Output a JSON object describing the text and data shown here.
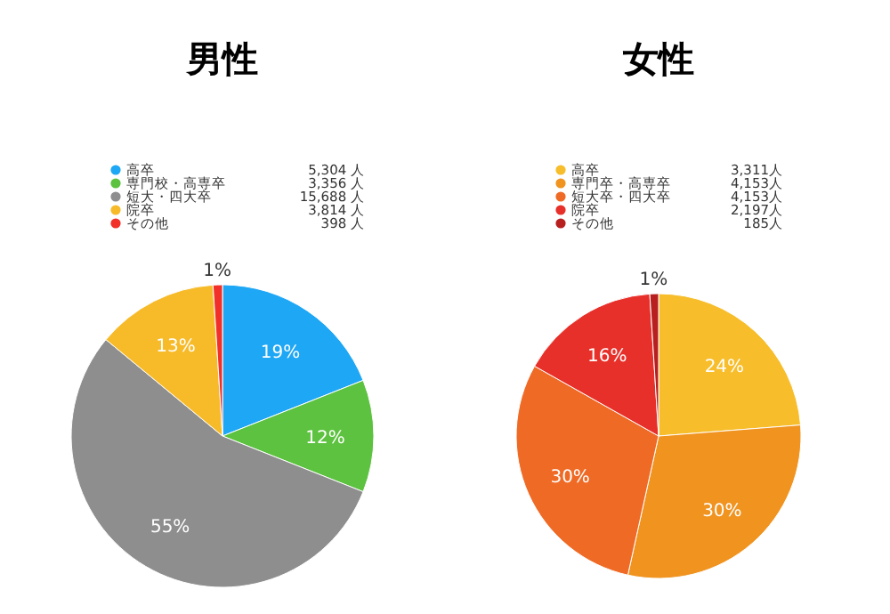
{
  "chart_data": [
    {
      "type": "pie",
      "title": "男性",
      "categories": [
        "高卒",
        "専門校・高専卒",
        "短大・四大卒",
        "院卒",
        "その他"
      ],
      "values": [
        19,
        12,
        55,
        13,
        1
      ],
      "colors": [
        "#1ea7f5",
        "#5cc23f",
        "#8e8e8e",
        "#f7bb2a",
        "#f2302a"
      ],
      "value_labels": [
        "19%",
        "12%",
        "55%",
        "13%",
        "1%"
      ],
      "annotations": [
        "5,304 人",
        "3,356 人",
        "15,688 人",
        "3,814 人",
        "398 人"
      ],
      "legend": "top"
    },
    {
      "type": "pie",
      "title": "女性",
      "categories": [
        "高卒",
        "専門卒・高専卒",
        "短大卒・四大卒",
        "院卒",
        "その他"
      ],
      "values": [
        24,
        30,
        30,
        16,
        1
      ],
      "colors": [
        "#f7bd2a",
        "#f0931f",
        "#ef6a25",
        "#e8302a",
        "#b82020"
      ],
      "value_labels": [
        "24%",
        "30%",
        "30%",
        "16%",
        "1%"
      ],
      "annotations": [
        "3,311人",
        "4,153人",
        "4,153人",
        "2,197人",
        "185人"
      ],
      "legend": "top"
    }
  ]
}
